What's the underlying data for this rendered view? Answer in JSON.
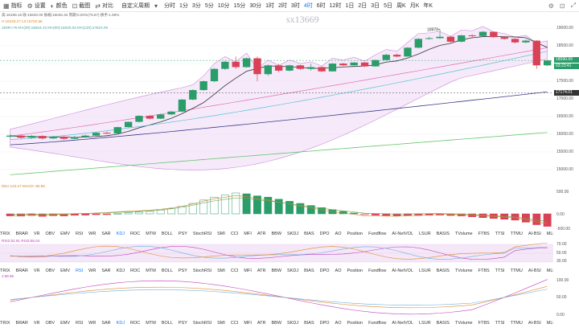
{
  "toolbar": {
    "items": [
      {
        "icon": "chart-icon",
        "label": "指标"
      },
      {
        "icon": "gear-icon",
        "label": "设置"
      },
      {
        "icon": "palette-icon",
        "label": "颜色"
      },
      {
        "icon": "camera-icon",
        "label": "截图"
      },
      {
        "icon": "compare-icon",
        "label": "对比"
      }
    ],
    "custom_period": "自定义周期",
    "timeframes": [
      "分时",
      "1分",
      "3分",
      "5分",
      "10分",
      "15分",
      "30分",
      "1时",
      "2时",
      "3时",
      "4时",
      "6时",
      "12时",
      "1日",
      "2日",
      "3日",
      "5日",
      "周K",
      "月K",
      "年K"
    ],
    "active_timeframe": "4时"
  },
  "right_icons": [
    "settings-icon",
    "camera-icon",
    "fullscreen-icon"
  ],
  "watermark": "sx13669",
  "info_lines": [
    {
      "text": "高:16189.16  收:15920.00  振幅:16026.33  周期:0.00%(79.67)  换手:1.59%",
      "color": "#666"
    },
    {
      "text": "H:16426.27  L0:15762.68",
      "color": "#e08a2b"
    },
    {
      "text": "16084.76  MA(30):15916.42  MA(60):15620.02  MA(120):14624.06",
      "color": "#2a9d8f"
    }
  ],
  "price_axis": [
    "19000.00",
    "18500.00",
    "17500.00",
    "17000.00",
    "16500.00",
    "16000.00",
    "15500.00",
    "15000.00"
  ],
  "price_tags": [
    {
      "text": "18090.99",
      "color": "#2a9d6a"
    },
    {
      "text": "03:23:41",
      "color": "#2a9d6a"
    },
    {
      "text": "17174.01",
      "color": "#333333"
    }
  ],
  "high_label": "18970",
  "macd_info": "DEA:143.27  MACD:-90.86",
  "macd_axis": [
    "500.00",
    "0.00",
    "-500.00"
  ],
  "rsi_info": "RSI2:52.91  RSI3:55.04",
  "rsi_axis": [
    "70.00",
    "50.00",
    "30.00"
  ],
  "kdj_info": "J:59.66",
  "kdj_axis": [
    "100.00",
    "50.00",
    "0.00"
  ],
  "indicator_tabs": [
    "TRIX",
    "BRAR",
    "VR",
    "OBV",
    "EMV",
    "RSI",
    "WR",
    "SAR",
    "KDJ",
    "ROC",
    "MTM",
    "BOLL",
    "PSY",
    "StochRSI",
    "SMI",
    "CCI",
    "MFI",
    "ATR",
    "BBW",
    "SKDJ",
    "BIAS",
    "DPO",
    "AO",
    "Position",
    "Fundflow",
    "AI-NetVOL",
    "LSUR",
    "BASIS",
    "TVolume",
    "FTBS",
    "TTSI",
    "TTMU",
    "AI-BSI",
    "MLR",
    "AI-PD",
    "AI-FDI",
    "AI-LI",
    "FR",
    "AI-BST",
    "AI-CMLSI"
  ],
  "tabs_selected_row1": "KDJ",
  "tabs_selected_row2": "KDJ",
  "candles": [
    [
      15930,
      15960,
      15880,
      15990
    ],
    [
      15960,
      15900,
      15860,
      15990
    ],
    [
      15900,
      15950,
      15870,
      15980
    ],
    [
      15950,
      15880,
      15850,
      15970
    ],
    [
      15880,
      15930,
      15860,
      15950
    ],
    [
      15930,
      15870,
      15840,
      15950
    ],
    [
      15870,
      15920,
      15860,
      15950
    ],
    [
      15920,
      15960,
      15900,
      15990
    ],
    [
      15960,
      16040,
      15940,
      16060
    ],
    [
      16040,
      16020,
      16000,
      16070
    ],
    [
      16020,
      16200,
      16010,
      16210
    ],
    [
      16200,
      16350,
      16190,
      16360
    ],
    [
      16350,
      16520,
      16330,
      16540
    ],
    [
      16520,
      16440,
      16420,
      16540
    ],
    [
      16440,
      16560,
      16430,
      16580
    ],
    [
      16560,
      16640,
      16540,
      16660
    ],
    [
      16640,
      16980,
      16620,
      17000
    ],
    [
      16980,
      17250,
      16960,
      17270
    ],
    [
      17250,
      17500,
      17230,
      17520
    ],
    [
      17500,
      17850,
      17470,
      17870
    ],
    [
      17850,
      18050,
      17820,
      18080
    ],
    [
      18050,
      17900,
      17850,
      18200
    ],
    [
      17900,
      18150,
      17880,
      18170
    ],
    [
      18150,
      17700,
      17500,
      18200
    ],
    [
      17700,
      17950,
      17650,
      17980
    ],
    [
      17950,
      17800,
      17750,
      17990
    ],
    [
      17800,
      17950,
      17780,
      17970
    ],
    [
      17950,
      17850,
      17820,
      17970
    ],
    [
      17850,
      17900,
      17800,
      18000
    ],
    [
      17900,
      17780,
      17760,
      17920
    ],
    [
      17780,
      18000,
      17770,
      18020
    ],
    [
      18000,
      17950,
      17930,
      18020
    ],
    [
      17950,
      18030,
      17940,
      18040
    ],
    [
      18030,
      17920,
      17900,
      18040
    ],
    [
      17920,
      18100,
      17910,
      18110
    ],
    [
      18100,
      18250,
      18080,
      18280
    ],
    [
      18250,
      18200,
      18180,
      18290
    ],
    [
      18200,
      18450,
      18190,
      18470
    ],
    [
      18450,
      18700,
      18430,
      18720
    ],
    [
      18700,
      18720,
      18680,
      18760
    ],
    [
      18720,
      18760,
      18700,
      18970
    ],
    [
      18760,
      18620,
      18600,
      18790
    ],
    [
      18620,
      18800,
      18600,
      18820
    ],
    [
      18800,
      18780,
      18740,
      18830
    ],
    [
      18780,
      18900,
      18760,
      18920
    ],
    [
      18900,
      18750,
      18730,
      18910
    ],
    [
      18750,
      18700,
      18680,
      18780
    ],
    [
      18700,
      18600,
      18570,
      18720
    ],
    [
      18600,
      18650,
      18580,
      18680
    ],
    [
      18650,
      17950,
      17850,
      18660
    ],
    [
      17950,
      18090,
      17930,
      18110
    ]
  ],
  "macd_hist": [
    -50,
    -55,
    -40,
    -60,
    -45,
    -50,
    -35,
    -30,
    -20,
    -10,
    10,
    25,
    40,
    60,
    90,
    130,
    180,
    250,
    330,
    400,
    450,
    500,
    480,
    430,
    400,
    350,
    300,
    250,
    200,
    150,
    100,
    60,
    20,
    -20,
    -30,
    -40,
    -50,
    -45,
    -40,
    -35,
    -30,
    -40,
    -50,
    -70,
    -90,
    -110,
    -130,
    -150,
    -200,
    -260,
    -300
  ]
}
